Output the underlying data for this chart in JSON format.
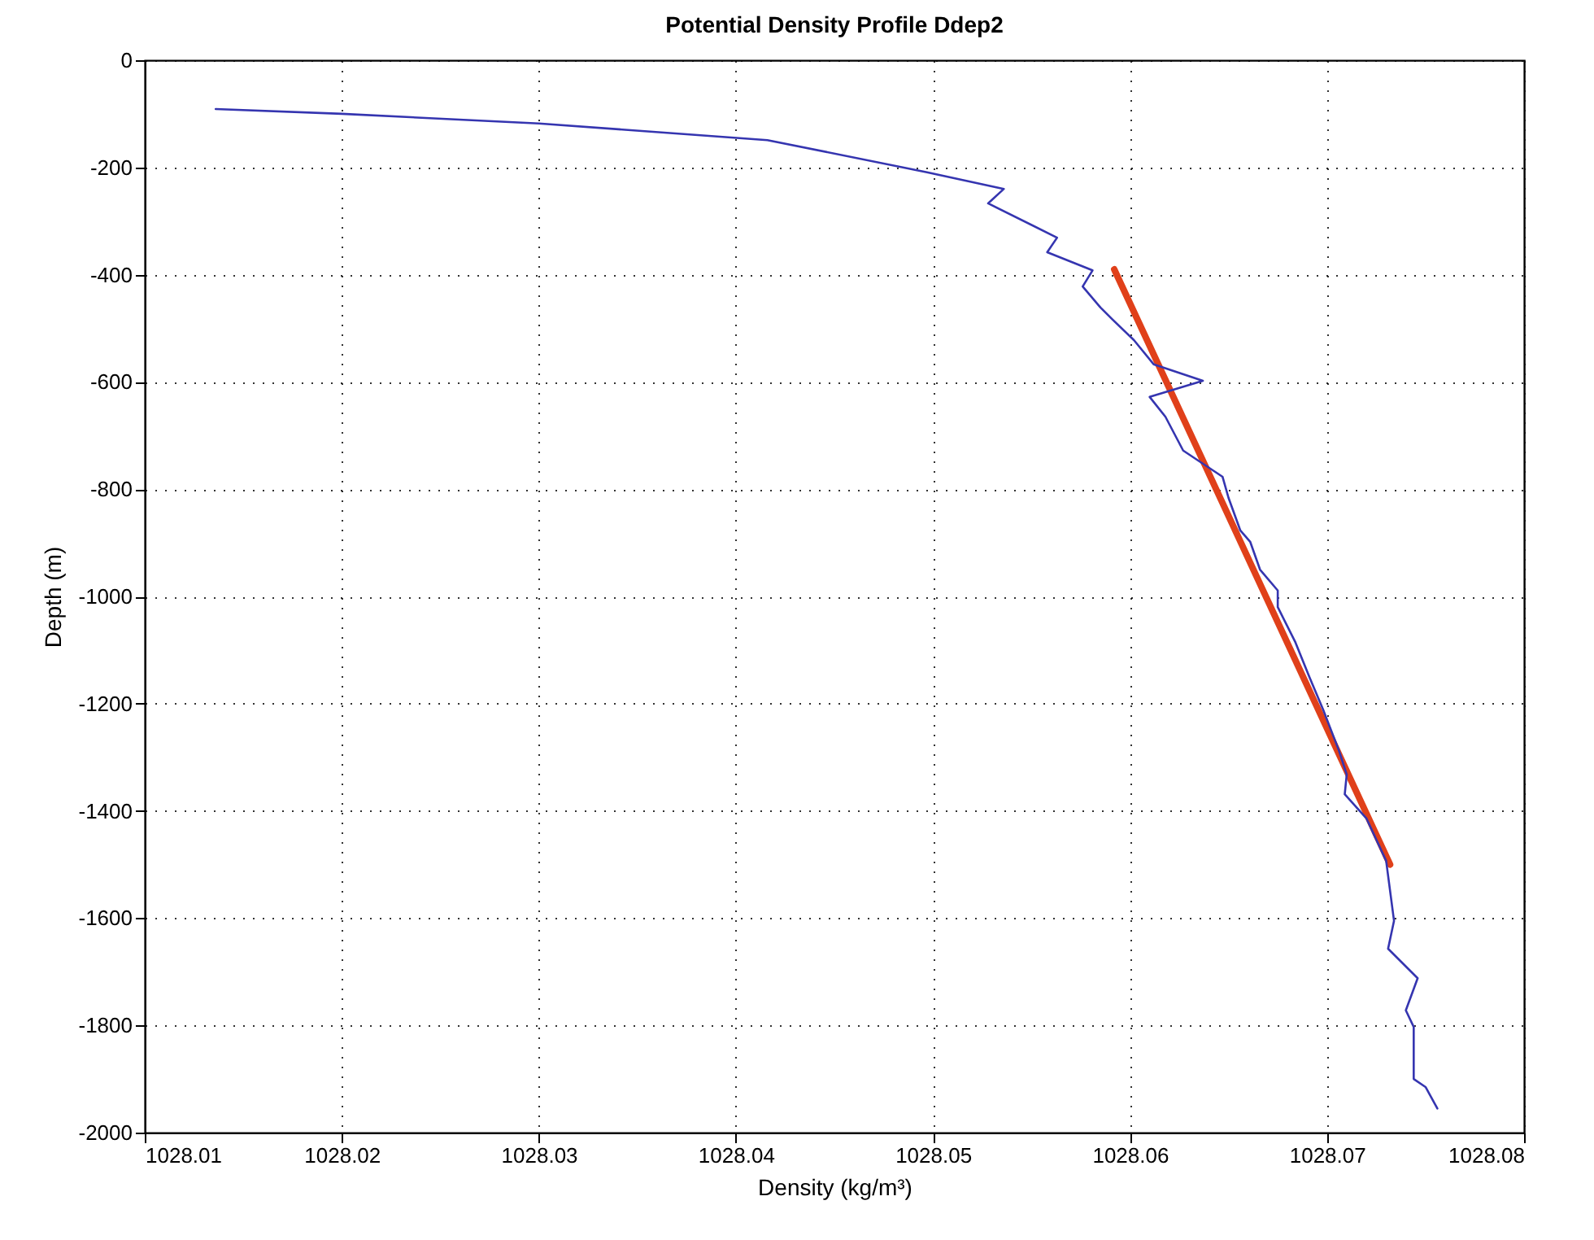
{
  "chart_data": {
    "type": "line",
    "title": "Potential Density Profile Ddep2",
    "xlabel": "Density (kg/m³)",
    "ylabel": "Depth (m)",
    "xlim": [
      1028.01,
      1028.08
    ],
    "xticks": [
      1028.01,
      1028.02,
      1028.03,
      1028.04,
      1028.05,
      1028.06,
      1028.07,
      1028.08
    ],
    "ylim": [
      -2000,
      0
    ],
    "yticks": [
      -2000,
      -1800,
      -1600,
      -1400,
      -1200,
      -1000,
      -800,
      -600,
      -400,
      -200,
      0
    ],
    "grid": true,
    "series": [
      {
        "color": "#3535b0",
        "x": [
          1028.0136,
          1028.02,
          1028.03,
          1028.0416,
          1028.0497,
          1028.0536,
          1028.0528,
          1028.0563,
          1028.0558,
          1028.0581,
          1028.0576,
          1028.0585,
          1028.0591,
          1028.0602,
          1028.0612,
          1028.0637,
          1028.061,
          1028.0618,
          1028.0627,
          1028.0647,
          1028.065,
          1028.0656,
          1028.0661,
          1028.0666,
          1028.0675,
          1028.0675,
          1028.0684,
          1028.0691,
          1028.0698,
          1028.0706,
          1028.071,
          1028.0709,
          1028.072,
          1028.073,
          1028.0734,
          1028.0731,
          1028.0746,
          1028.074,
          1028.0744,
          1028.0744,
          1028.075,
          1028.0756
        ],
        "values": [
          -91,
          -100,
          -118,
          -149,
          -209,
          -240,
          -267,
          -331,
          -358,
          -392,
          -422,
          -461,
          -483,
          -522,
          -567,
          -598,
          -628,
          -665,
          -728,
          -777,
          -816,
          -877,
          -898,
          -950,
          -989,
          -1020,
          -1086,
          -1150,
          -1211,
          -1287,
          -1332,
          -1369,
          -1414,
          -1493,
          -1605,
          -1657,
          -1712,
          -1772,
          -1803,
          -1900,
          -1915,
          -1955
        ]
      },
      {
        "type": "line",
        "color": "#e0401a",
        "x": [
          1028.0592,
          1028.0732
        ],
        "values": [
          -390,
          -1500
        ]
      }
    ]
  }
}
